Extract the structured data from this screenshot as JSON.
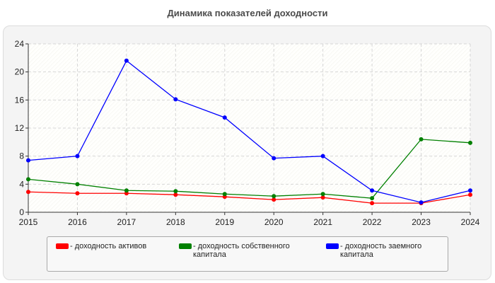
{
  "chart_data": {
    "type": "line",
    "title": "Динамика показателей доходности",
    "x": [
      "2015",
      "2016",
      "2017",
      "2018",
      "2019",
      "2020",
      "2021",
      "2022",
      "2023",
      "2024"
    ],
    "ylim": [
      0,
      24
    ],
    "yticks": [
      "0",
      "4",
      "8",
      "12",
      "16",
      "20",
      "24"
    ],
    "grid": true,
    "legend_position": "bottom",
    "series": [
      {
        "name": "- доходность активов",
        "color": "#ff0000",
        "values": [
          2.9,
          2.7,
          2.7,
          2.5,
          2.2,
          1.8,
          2.1,
          1.3,
          1.3,
          2.5
        ]
      },
      {
        "name": "- доходность собственного капитала",
        "color": "#008000",
        "values": [
          4.7,
          4.0,
          3.1,
          3.0,
          2.6,
          2.3,
          2.6,
          2.0,
          10.4,
          9.9
        ]
      },
      {
        "name": "- доходность заемного капитала",
        "color": "#0000ff",
        "values": [
          7.4,
          8.0,
          21.6,
          16.1,
          13.5,
          7.7,
          8.0,
          3.1,
          1.4,
          3.1
        ]
      }
    ]
  }
}
